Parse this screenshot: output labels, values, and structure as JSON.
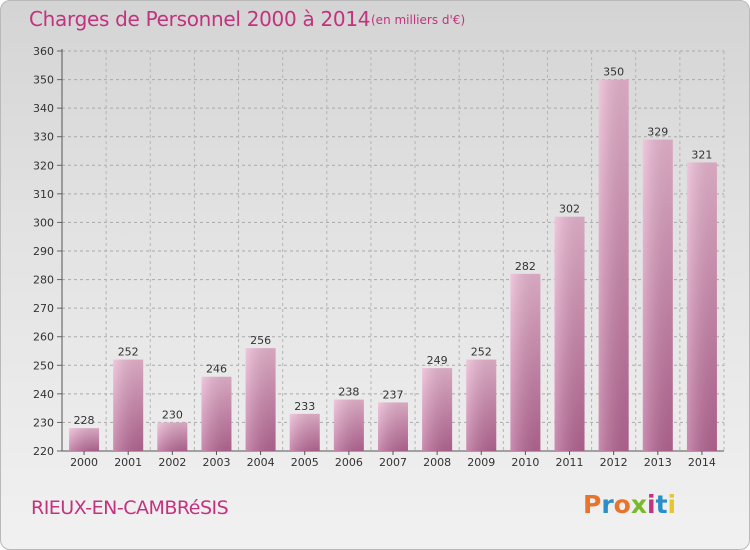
{
  "header": {
    "title": "Charges de Personnel 2000 à 2014",
    "subtitle": "(en milliers d'€)"
  },
  "footer": {
    "town": "RIEUX-EN-CAMBRéSIS",
    "brand": "Proxiti"
  },
  "colors": {
    "accent": "#c2337f",
    "bar": "#d88fb5",
    "bar_light": "#eab6d1",
    "bar_dark": "#b76694"
  },
  "chart_data": {
    "type": "bar",
    "title": "Charges de Personnel 2000 à 2014",
    "subtitle": "(en milliers d'€)",
    "xlabel": "",
    "ylabel": "",
    "categories": [
      "2000",
      "2001",
      "2002",
      "2003",
      "2004",
      "2005",
      "2006",
      "2007",
      "2008",
      "2009",
      "2010",
      "2011",
      "2012",
      "2013",
      "2014"
    ],
    "values": [
      228,
      252,
      230,
      246,
      256,
      233,
      238,
      237,
      249,
      252,
      282,
      302,
      350,
      329,
      321
    ],
    "ylim": [
      220,
      360
    ],
    "yticks": [
      220,
      230,
      240,
      250,
      260,
      270,
      280,
      290,
      300,
      310,
      320,
      330,
      340,
      350,
      360
    ],
    "grid": true,
    "data_labels": true
  }
}
